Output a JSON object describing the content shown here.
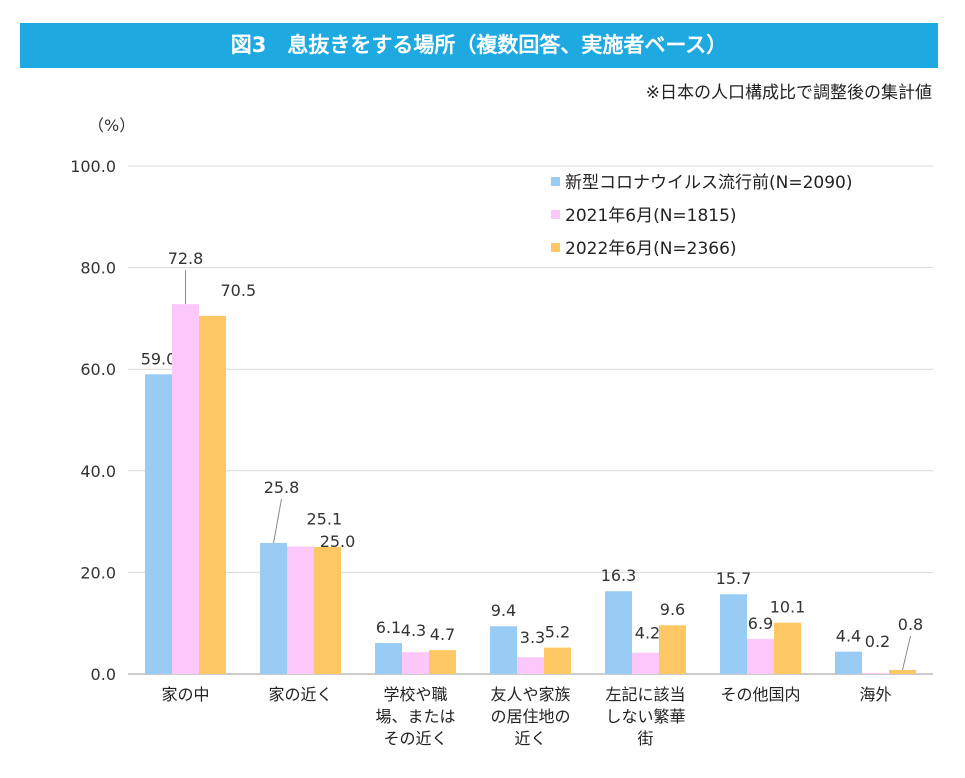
{
  "header": {
    "title": "図3　息抜きをする場所（複数回答、実施者ベース）",
    "note": "※日本の人口構成比で調整後の集計値"
  },
  "colors": {
    "title_bg": "#1fa9e1",
    "series": [
      "#99ccf5",
      "#fcc7f9",
      "#fdc863"
    ]
  },
  "chart_data": {
    "type": "bar",
    "ylabel": "（%）",
    "ylim": [
      0,
      100
    ],
    "yticks": [
      "100.0",
      "80.0",
      "60.0",
      "40.0",
      "20.0",
      "0.0"
    ],
    "grid": true,
    "legend_position": "top-right",
    "categories": [
      [
        "家の中"
      ],
      [
        "家の近く"
      ],
      [
        "学校や職",
        "場、または",
        "その近く"
      ],
      [
        "友人や家族",
        "の居住地の",
        "近く"
      ],
      [
        "左記に該当",
        "しない繁華",
        "街"
      ],
      [
        "その他国内"
      ],
      [
        "海外"
      ]
    ],
    "series": [
      {
        "name": "新型コロナウイルス流行前(N=2090)",
        "values": [
          59.0,
          25.8,
          6.1,
          9.4,
          16.3,
          15.7,
          4.4
        ]
      },
      {
        "name": "2021年6月(N=1815)",
        "values": [
          72.8,
          25.1,
          4.3,
          3.3,
          4.2,
          6.9,
          0.2
        ]
      },
      {
        "name": "2022年6月(N=2366)",
        "values": [
          70.5,
          25.0,
          4.7,
          5.2,
          9.6,
          10.1,
          0.8
        ]
      }
    ],
    "value_labels": [
      [
        "59.0",
        "25.8",
        "6.1",
        "9.4",
        "16.3",
        "15.7",
        "4.4"
      ],
      [
        "72.8",
        "25.1",
        "4.3",
        "3.3",
        "4.2",
        "6.9",
        "0.2"
      ],
      [
        "70.5",
        "25.0",
        "4.7",
        "5.2",
        "9.6",
        "10.1",
        "0.8"
      ]
    ]
  }
}
